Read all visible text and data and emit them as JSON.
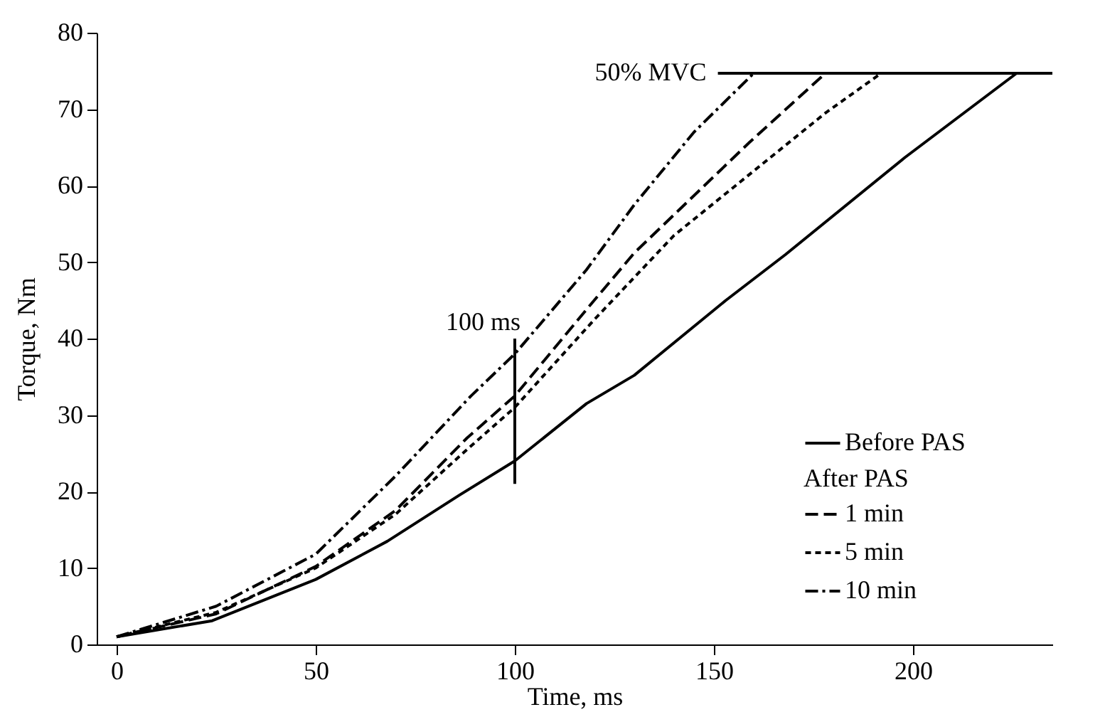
{
  "chart_data": {
    "type": "line",
    "xlabel": "Time, ms",
    "ylabel": "Torque, Nm",
    "legend_title": "After PAS",
    "legend": "bottom right",
    "xlim": [
      -5,
      235
    ],
    "xticks": [
      0,
      50,
      100,
      150,
      200
    ],
    "ylim": [
      0,
      80
    ],
    "yticks": [
      0,
      10,
      20,
      30,
      40,
      50,
      60,
      70,
      80
    ],
    "grid": false,
    "series": [
      {
        "name": "Before PAS",
        "color": "#000000",
        "line_style": "solid",
        "x": [
          0,
          24,
          50,
          68,
          86,
          100,
          118,
          130,
          153,
          168,
          198,
          226
        ],
        "values": [
          1,
          3.1,
          8.5,
          13.5,
          19.5,
          24,
          31.5,
          35.2,
          45,
          51,
          63.7,
          74.7
        ]
      },
      {
        "name": "1 min",
        "color": "#000000",
        "line_style": "dashed",
        "x": [
          0,
          25,
          50,
          70,
          88,
          100,
          118,
          130,
          159,
          178
        ],
        "values": [
          1,
          4,
          10.2,
          17.5,
          27,
          32.5,
          43.8,
          51.2,
          65.7,
          74.7
        ]
      },
      {
        "name": "5 min",
        "color": "#000000",
        "line_style": "dotted",
        "x": [
          0,
          25,
          50,
          70,
          88,
          100,
          120,
          140,
          178,
          192
        ],
        "values": [
          1,
          4.2,
          10,
          17,
          25.5,
          31,
          42.5,
          53.5,
          69.5,
          74.7
        ]
      },
      {
        "name": "10 min",
        "color": "#000000",
        "line_style": "dashdot",
        "x": [
          0,
          25,
          50,
          70,
          89,
          100,
          118,
          130,
          145,
          160
        ],
        "values": [
          1,
          5,
          11.8,
          22,
          32.5,
          38,
          49,
          57.5,
          67,
          74.7
        ]
      },
      {
        "color": "#000000",
        "line_style": "solid",
        "x": [
          151,
          235
        ],
        "values": [
          74.7,
          74.7
        ]
      },
      {
        "color": "#000000",
        "line_style": "solid",
        "x": [
          100,
          100
        ],
        "values": [
          21,
          40
        ]
      }
    ],
    "annotations": [
      {
        "text": "50% MVC",
        "x": 151,
        "y": 74.7
      },
      {
        "text": "100 ms",
        "x": 100,
        "y": 40
      }
    ]
  }
}
